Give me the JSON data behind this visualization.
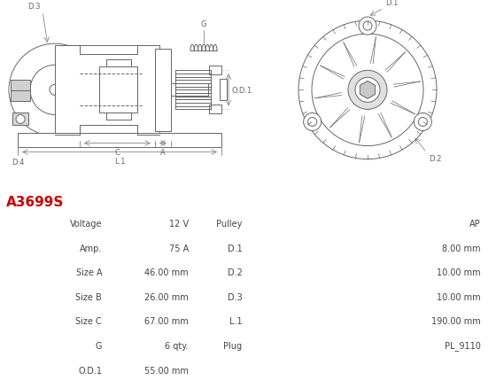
{
  "title": "A3699S",
  "title_color": "#cc0000",
  "bg_color": "#ffffff",
  "line_color": "#666666",
  "dim_color": "#888888",
  "table_text_color": "#444444",
  "table_border_color": "#ffffff",
  "row_bg": [
    "#e8e8e8",
    "#f4f4f4"
  ],
  "left_col_labels": [
    "Voltage",
    "Amp.",
    "Size A",
    "Size B",
    "Size C",
    "G",
    "O.D.1"
  ],
  "left_col_values": [
    "12 V",
    "75 A",
    "46.00 mm",
    "26.00 mm",
    "67.00 mm",
    "6 qty.",
    "55.00 mm"
  ],
  "right_col_labels": [
    "Pulley",
    "D.1",
    "D.2",
    "D.3",
    "L.1",
    "Plug",
    ""
  ],
  "right_col_values": [
    "AP",
    "8.00 mm",
    "10.00 mm",
    "10.00 mm",
    "190.00 mm",
    "PL_9110",
    ""
  ]
}
